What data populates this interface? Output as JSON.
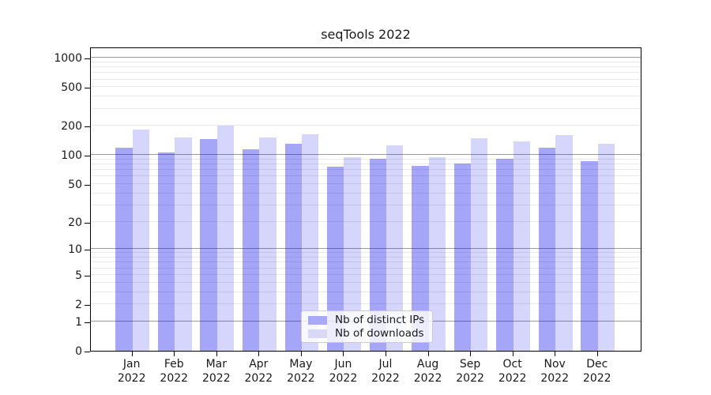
{
  "chart_data": {
    "type": "bar",
    "title": "seqTools 2022",
    "categories": [
      "Jan",
      "Feb",
      "Mar",
      "Apr",
      "May",
      "Jun",
      "Jul",
      "Aug",
      "Sep",
      "Oct",
      "Nov",
      "Dec"
    ],
    "year_label": "2022",
    "series": [
      {
        "name": "Nb of distinct IPs",
        "color": "#a9a9f7",
        "fill": "rgba(0,0,238,0.35)",
        "values": [
          120,
          106,
          146,
          114,
          130,
          76,
          92,
          77,
          82,
          92,
          120,
          87
        ]
      },
      {
        "name": "Nb of downloads",
        "color": "#d9d9f7",
        "fill": "rgba(0,0,238,0.16)",
        "values": [
          185,
          152,
          203,
          152,
          165,
          95,
          126,
          96,
          150,
          138,
          161,
          130
        ]
      }
    ],
    "y_ticks": [
      0,
      1,
      2,
      5,
      10,
      20,
      50,
      100,
      200,
      500,
      1000
    ],
    "y_scale": "log10(1+y)",
    "ylim": [
      0,
      1300
    ],
    "xlabel": "",
    "ylabel": "",
    "grid": {
      "major_lines_at": [
        1,
        10,
        100,
        1000
      ],
      "minor_lines": true,
      "vertical_lines": false
    },
    "legend": {
      "position": "lower center"
    }
  },
  "colors": {
    "background": "#ffffff",
    "spine": "#000000",
    "grid_major": "#9b9b9b",
    "grid_minor": "#e9e9e9",
    "text": "#1a1a1a"
  }
}
